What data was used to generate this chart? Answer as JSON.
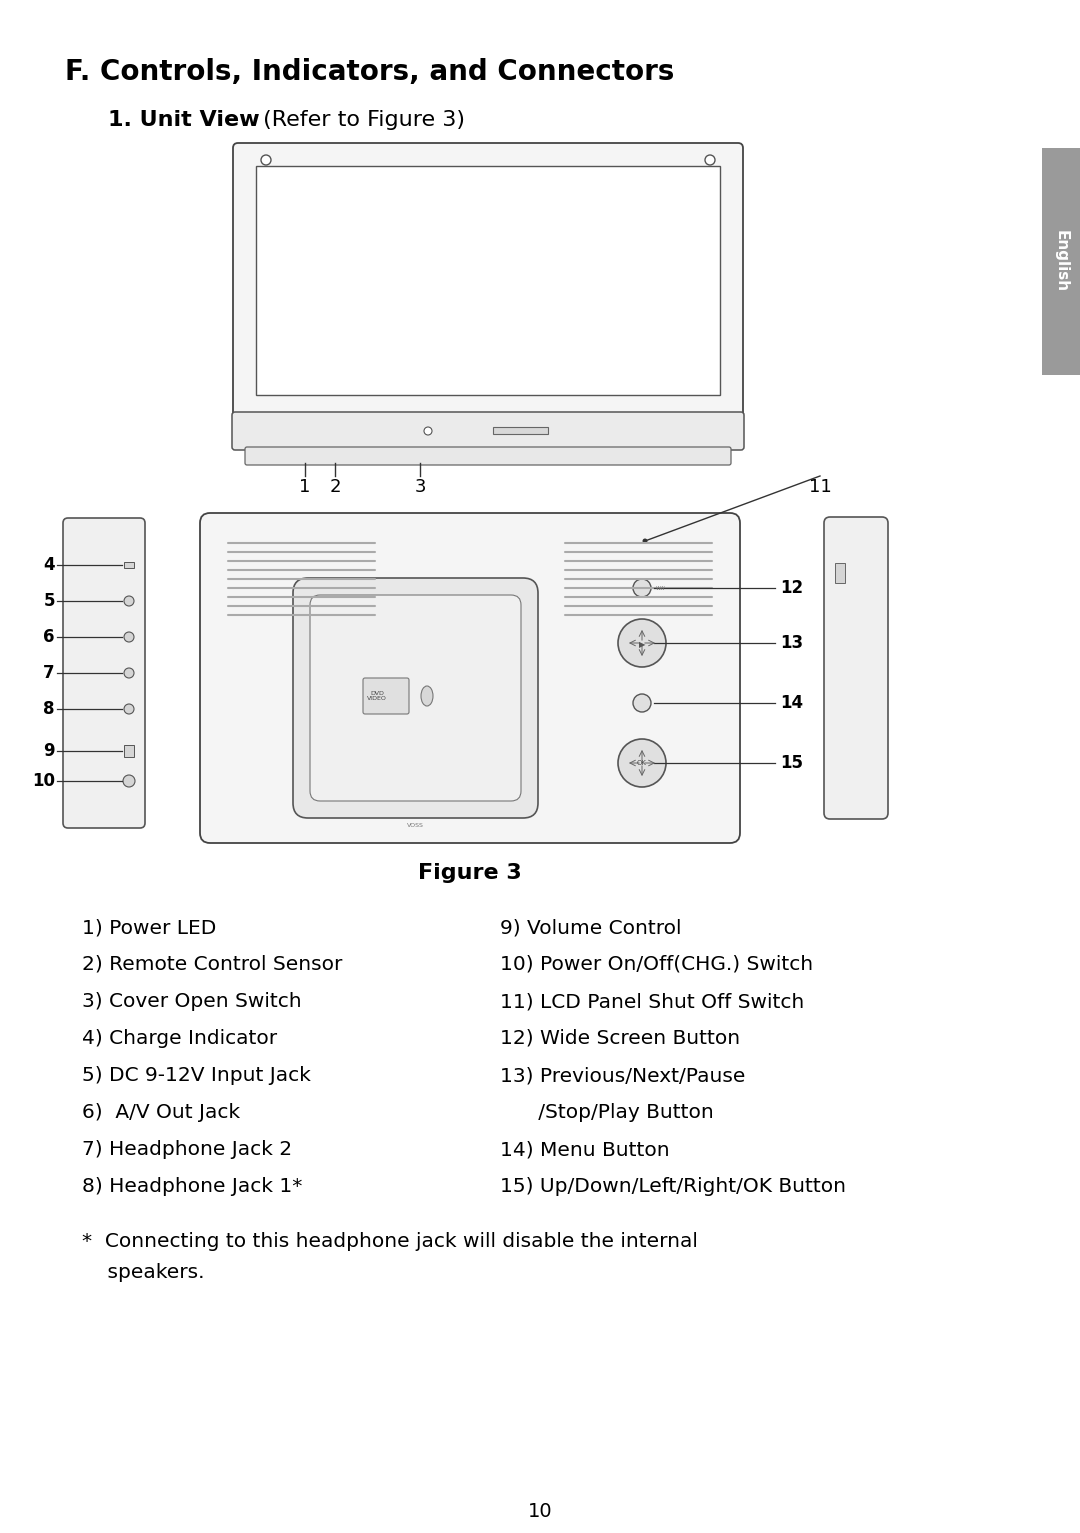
{
  "title": "F. Controls, Indicators, and Connectors",
  "subtitle_bold": "1. Unit View",
  "subtitle_normal": " (Refer to Figure 3)",
  "figure_caption": "Figure 3",
  "page_number": "10",
  "sidebar_text": "English",
  "sidebar_color": "#9a9a9a",
  "bg_color": "#ffffff",
  "text_color": "#000000",
  "left_items": [
    "1) Power LED",
    "2) Remote Control Sensor",
    "3) Cover Open Switch",
    "4) Charge Indicator",
    "5) DC 9-12V Input Jack",
    "6)  A/V Out Jack",
    "7) Headphone Jack 2",
    "8) Headphone Jack 1*"
  ],
  "right_items": [
    "9) Volume Control",
    "10) Power On/Off(CHG.) Switch",
    "11) LCD Panel Shut Off Switch",
    "12) Wide Screen Button",
    "13) Previous/Next/Pause",
    "      /Stop/Play Button",
    "14) Menu Button",
    "15) Up/Down/Left/Right/OK Button"
  ],
  "footnote_line1": "*  Connecting to this headphone jack will disable the internal",
  "footnote_line2": "    speakers.",
  "font_family": "DejaVu Sans"
}
